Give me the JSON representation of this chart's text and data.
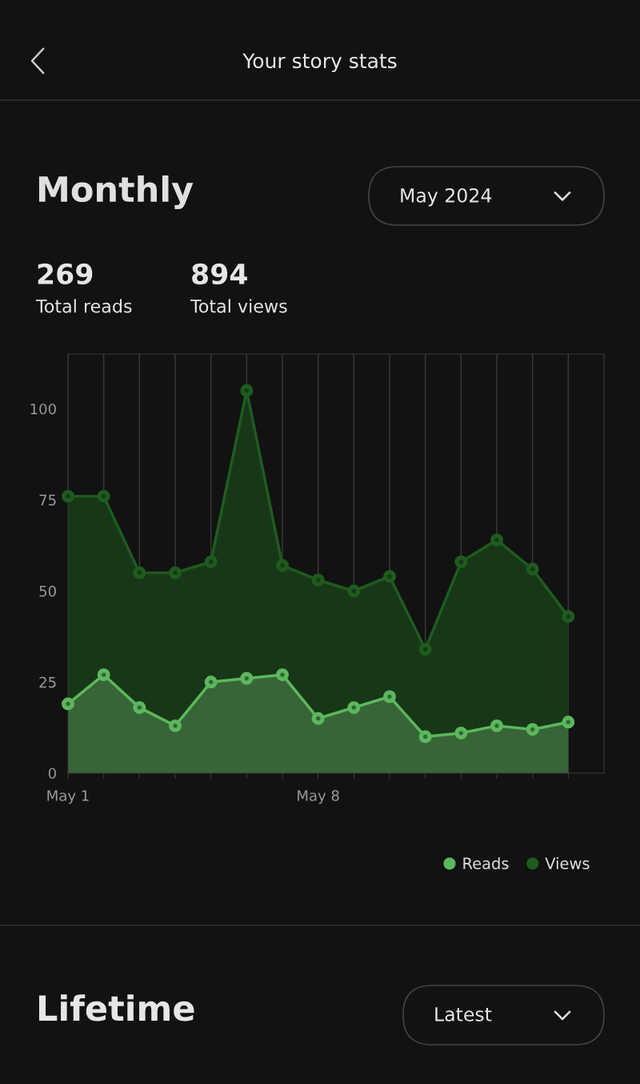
{
  "chart_data": {
    "type": "area",
    "title": "Your story stats",
    "subtitle": "Monthly",
    "annotations": [
      "May 2024",
      "269",
      "Total reads",
      "894",
      "Total views",
      "Lifetime",
      "Latest"
    ],
    "x": [
      "2024-05-01",
      "2024-05-02",
      "2024-05-03",
      "2024-05-04",
      "2024-05-05",
      "2024-05-06",
      "2024-05-07",
      "2024-05-08",
      "2024-05-09",
      "2024-05-10",
      "2024-05-11",
      "2024-05-12",
      "2024-05-13",
      "2024-05-14",
      "2024-05-15"
    ],
    "series": [
      {
        "name": "Views",
        "color": "#1e5c1e",
        "values": [
          76,
          76,
          55,
          55,
          58,
          105,
          57,
          53,
          50,
          54,
          34,
          58,
          64,
          56,
          43
        ]
      },
      {
        "name": "Reads",
        "color": "#5cb85c",
        "values": [
          19,
          27,
          18,
          13,
          25,
          26,
          27,
          15,
          18,
          21,
          10,
          11,
          13,
          12,
          14
        ]
      }
    ],
    "xlim": [
      "2024-05-01",
      "2024-05-16"
    ],
    "xticks": [
      {
        "value": "2024-05-01",
        "label": "May 1"
      },
      {
        "value": "2024-05-02",
        "label": null
      },
      {
        "value": "2024-05-03",
        "label": null
      },
      {
        "value": "2024-05-04",
        "label": null
      },
      {
        "value": "2024-05-05",
        "label": null
      },
      {
        "value": "2024-05-06",
        "label": null
      },
      {
        "value": "2024-05-07",
        "label": null
      },
      {
        "value": "2024-05-08",
        "label": "May 8"
      },
      {
        "value": "2024-05-09",
        "label": null
      },
      {
        "value": "2024-05-10",
        "label": null
      },
      {
        "value": "2024-05-11",
        "label": null
      },
      {
        "value": "2024-05-12",
        "label": null
      },
      {
        "value": "2024-05-13",
        "label": null
      },
      {
        "value": "2024-05-14",
        "label": null
      },
      {
        "value": "2024-05-15",
        "label": null
      }
    ],
    "ylim": [
      0,
      115
    ],
    "yticks": [
      0,
      25,
      50,
      75,
      100
    ],
    "grid": "x",
    "legend": "bottom right",
    "marker": "circle",
    "line_style": "solid"
  }
}
